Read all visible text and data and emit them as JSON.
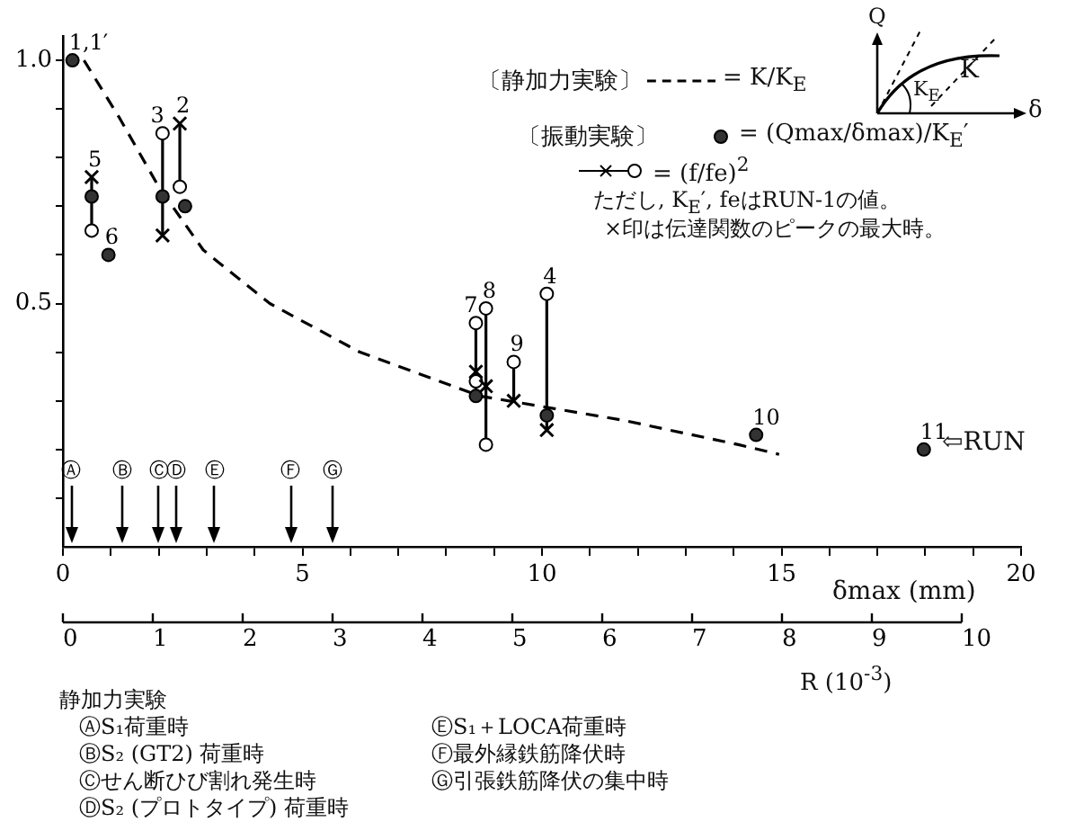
{
  "chart_data": {
    "type": "scatter",
    "xlabel": "δmax (mm)",
    "x2label": "R (10$^{-3}$)",
    "xlim": [
      0,
      20
    ],
    "xticks": [
      0,
      {
        "value": 1,
        "label": null
      },
      {
        "value": 2,
        "label": null
      },
      {
        "value": 3,
        "label": null
      },
      {
        "value": 4,
        "label": null
      },
      5,
      {
        "value": 6,
        "label": null
      },
      {
        "value": 7,
        "label": null
      },
      {
        "value": 8,
        "label": null
      },
      {
        "value": 9,
        "label": null
      },
      10,
      {
        "value": 11,
        "label": null
      },
      {
        "value": 12,
        "label": null
      },
      {
        "value": 13,
        "label": null
      },
      {
        "value": 14,
        "label": null
      },
      15,
      {
        "value": 16,
        "label": null
      },
      {
        "value": 17,
        "label": null
      },
      {
        "value": 18,
        "label": null
      },
      {
        "value": 19,
        "label": null
      },
      20
    ],
    "x2lim": [
      0,
      10
    ],
    "x2ticks": [
      0,
      1,
      2,
      3,
      4,
      5,
      6,
      7,
      8,
      9,
      10
    ],
    "ylim": [
      0,
      1.05
    ],
    "yticks": [
      {
        "value": 0.1,
        "label": null
      },
      {
        "value": 0.2,
        "label": null
      },
      {
        "value": 0.3,
        "label": null
      },
      {
        "value": 0.4,
        "label": null
      },
      {
        "value": 0.5,
        "label": "0.5"
      },
      {
        "value": 0.6,
        "label": null
      },
      {
        "value": 0.7,
        "label": null
      },
      {
        "value": 0.8,
        "label": null
      },
      {
        "value": 0.9,
        "label": null
      },
      {
        "value": 1,
        "label": "1.0"
      }
    ],
    "legend": "top right",
    "series": [
      {
        "type": "line",
        "name": "= K/K$_{E}$",
        "color": "#000000",
        "line_style": "dashed",
        "marker": "none",
        "x": [
          0.44,
          1.19,
          2.0,
          2.93,
          4.32,
          6.2,
          8.7,
          11.7,
          14.1,
          14.95
        ],
        "values": [
          1.0,
          0.88,
          0.74,
          0.61,
          0.5,
          0.4,
          0.31,
          0.26,
          0.21,
          0.19
        ]
      },
      {
        "type": "scatter",
        "name": "= (Qmax/δmax)/K$_{E}$′",
        "color": "#333333",
        "marker": "circle",
        "x": [
          0.2,
          0.6,
          0.95,
          2.08,
          2.55,
          8.62,
          10.1,
          14.47,
          17.97
        ],
        "values": [
          1.0,
          0.72,
          0.6,
          0.72,
          0.7,
          0.31,
          0.27,
          0.23,
          0.2
        ]
      },
      {
        "type": "scatter",
        "name": "= (f/fe)$^{2}$",
        "color": "#ffffff",
        "marker": "circle",
        "x": [
          0.6,
          2.08,
          2.44,
          8.62,
          8.62,
          8.83,
          8.83,
          9.41,
          10.1
        ],
        "values": [
          0.65,
          0.85,
          0.74,
          0.46,
          0.34,
          0.49,
          0.21,
          0.38,
          0.52
        ]
      },
      {
        "type": "scatter",
        "color": "#000000",
        "marker": "cross",
        "x": [
          0.6,
          2.08,
          2.44,
          8.62,
          8.83,
          9.41,
          10.1
        ],
        "values": [
          0.76,
          0.64,
          0.87,
          0.36,
          0.33,
          0.3,
          0.24
        ]
      },
      {
        "type": "line",
        "color": "#000000",
        "marker": "none",
        "line_style": "solid",
        "x": [
          0.6,
          0.6,
          null,
          2.08,
          2.08,
          null,
          2.44,
          2.44,
          null,
          8.62,
          8.62,
          null,
          8.83,
          8.83,
          null,
          9.41,
          9.41,
          null,
          10.1,
          10.1
        ],
        "values": [
          0.76,
          0.65,
          null,
          0.85,
          0.64,
          null,
          0.87,
          0.74,
          null,
          0.46,
          0.31,
          null,
          0.49,
          0.21,
          null,
          0.38,
          0.3,
          null,
          0.52,
          0.24
        ]
      }
    ],
    "ref_lines": [
      {
        "axis": "x",
        "value": 0.17,
        "label": "Ⓐ"
      },
      {
        "axis": "x",
        "value": 1.24,
        "label": "Ⓑ"
      },
      {
        "axis": "x",
        "value": 2.0,
        "label": "Ⓒ"
      },
      {
        "axis": "x",
        "value": 2.37,
        "label": "Ⓓ"
      },
      {
        "axis": "x",
        "value": 3.17,
        "label": "Ⓔ"
      },
      {
        "axis": "x",
        "value": 4.75,
        "label": "Ⓕ"
      },
      {
        "axis": "x",
        "value": 5.62,
        "label": "Ⓖ"
      }
    ],
    "annotations": [
      "〔静加力実験〕",
      "〔振動実験〕",
      "ただし, K$_{E}$′, feはRUN-1の値。",
      "×印は伝達関数のピークの最大時。",
      "静加力実験",
      "ⒶS₁荷重時",
      "ⒷS₂ (GT2) 荷重時",
      "Ⓒせん断ひび割れ発生時",
      "ⒹS₂ (プロトタイプ) 荷重時",
      "ⒺS₁＋LOCA荷重時",
      "Ⓕ最外縁鉄筋降伏時",
      "Ⓖ引張鉄筋降伏の集中時",
      "Q",
      "δ",
      "K",
      "K$_{E}$",
      "⇦RUN",
      {
        "text": "1,1′",
        "x": 0.2,
        "y": 1.0
      },
      {
        "text": "5",
        "x": 0.6,
        "y": 0.76
      },
      {
        "text": "6",
        "x": 0.95,
        "y": 0.6
      },
      {
        "text": "3",
        "x": 2.08,
        "y": 0.85
      },
      {
        "text": "2",
        "x": 2.44,
        "y": 0.87
      },
      {
        "text": "7",
        "x": 8.62,
        "y": 0.46
      },
      {
        "text": "8",
        "x": 8.83,
        "y": 0.49
      },
      {
        "text": "9",
        "x": 9.41,
        "y": 0.38
      },
      {
        "text": "4",
        "x": 10.1,
        "y": 0.52
      },
      {
        "text": "10",
        "x": 14.47,
        "y": 0.23
      },
      {
        "text": "11",
        "x": 17.97,
        "y": 0.2
      }
    ]
  }
}
